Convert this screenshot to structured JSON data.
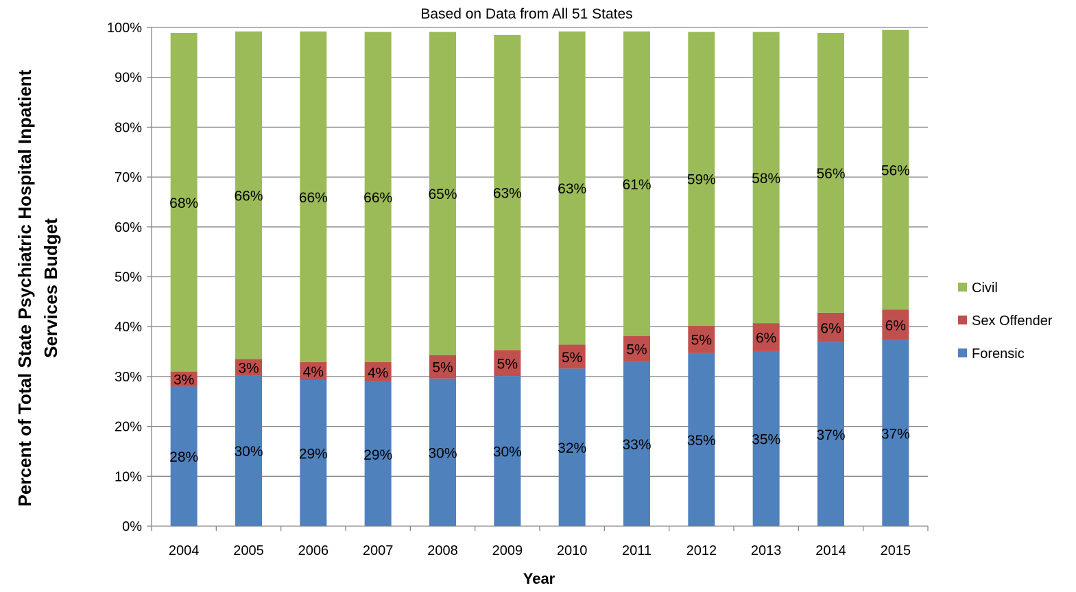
{
  "chart_data": {
    "type": "bar",
    "stacked": true,
    "title": "",
    "subtitle": "Based on Data from All 51 States",
    "xlabel": "Year",
    "ylabel_lines": [
      "Percent of Total State Psychiatric Hospital Inpatient",
      "Services Budget"
    ],
    "categories": [
      "2004",
      "2005",
      "2006",
      "2007",
      "2008",
      "2009",
      "2010",
      "2011",
      "2012",
      "2013",
      "2014",
      "2015"
    ],
    "ylim": [
      0,
      100
    ],
    "y_ticks": [
      0,
      10,
      20,
      30,
      40,
      50,
      60,
      70,
      80,
      90,
      100
    ],
    "y_tick_suffix": "%",
    "grid": true,
    "legend_position": "right",
    "series": [
      {
        "name": "Forensic",
        "color": "#4F81BD",
        "values": [
          28.0,
          30.2,
          29.3,
          28.9,
          29.6,
          30.1,
          31.6,
          33.0,
          34.7,
          35.1,
          36.9,
          37.3
        ],
        "labels": [
          "28%",
          "30%",
          "29%",
          "29%",
          "30%",
          "30%",
          "32%",
          "33%",
          "35%",
          "35%",
          "37%",
          "37%"
        ]
      },
      {
        "name": "Sex Offender",
        "color": "#C0504D",
        "values": [
          3.0,
          3.3,
          3.6,
          4.0,
          4.7,
          5.2,
          4.8,
          5.1,
          5.5,
          5.6,
          5.9,
          6.1
        ],
        "labels": [
          "3%",
          "3%",
          "4%",
          "4%",
          "5%",
          "5%",
          "5%",
          "5%",
          "5%",
          "6%",
          "6%",
          "6%"
        ]
      },
      {
        "name": "Civil",
        "color": "#9BBB59",
        "values": [
          67.9,
          65.7,
          66.3,
          66.2,
          64.8,
          63.2,
          62.8,
          61.1,
          58.9,
          58.4,
          56.1,
          56.1
        ],
        "labels": [
          "68%",
          "66%",
          "66%",
          "66%",
          "65%",
          "63%",
          "63%",
          "61%",
          "59%",
          "58%",
          "56%",
          "56%"
        ]
      }
    ],
    "legend_order": [
      "Civil",
      "Sex Offender",
      "Forensic"
    ]
  }
}
